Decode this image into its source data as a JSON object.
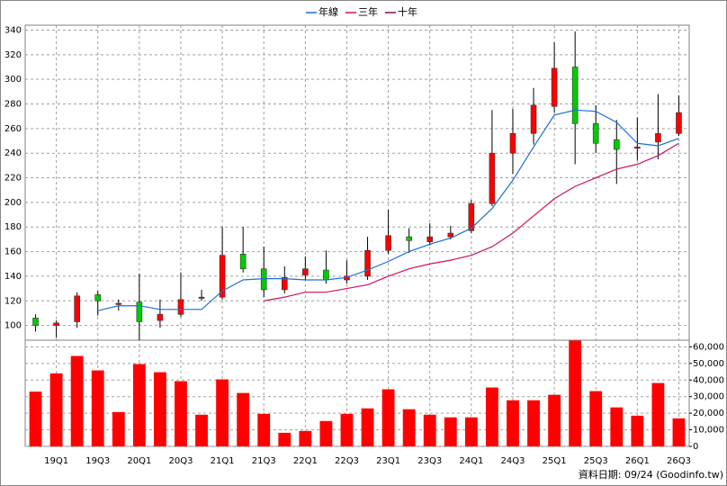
{
  "chart_data": {
    "type": "candlestick",
    "categories": [
      null,
      "19Q1",
      null,
      "19Q3",
      null,
      "20Q1",
      null,
      "20Q3",
      null,
      "21Q1",
      null,
      "21Q3",
      null,
      "22Q1",
      null,
      "22Q3",
      null,
      "23Q1",
      null,
      "23Q3",
      null,
      "24Q1",
      null,
      "24Q3",
      null,
      "25Q1",
      null,
      "25Q3",
      null,
      "26Q1",
      null,
      "26Q3"
    ],
    "open": [
      106,
      100,
      103,
      125,
      117,
      119,
      104,
      109,
      122,
      123,
      158,
      146,
      129,
      141,
      145,
      137,
      140,
      161,
      172,
      168,
      172,
      177,
      199,
      240,
      256,
      278,
      310,
      264,
      251,
      244,
      249,
      256
    ],
    "high": [
      109,
      104,
      127,
      128,
      121,
      142,
      121,
      143,
      129,
      180,
      180,
      164,
      148,
      156,
      161,
      153,
      172,
      194,
      179,
      183,
      181,
      202,
      275,
      276,
      293,
      330,
      339,
      279,
      267,
      269,
      288,
      287
    ],
    "low": [
      95,
      90,
      98,
      108,
      112,
      88,
      98,
      107,
      120,
      121,
      143,
      123,
      126,
      137,
      134,
      134,
      137,
      158,
      159,
      165,
      170,
      175,
      197,
      223,
      247,
      273,
      231,
      240,
      215,
      234,
      235,
      254
    ],
    "close": [
      100,
      102,
      124,
      120,
      118,
      103,
      109,
      121,
      123,
      157,
      146,
      129,
      139,
      146,
      137,
      140,
      161,
      173,
      169,
      172,
      175,
      199,
      240,
      256,
      279,
      309,
      264,
      248,
      243,
      245,
      256,
      273
    ],
    "up_color": "#ff0000",
    "down_color": "#00cc00",
    "series": [
      {
        "name": "年線",
        "color": "#1a6fd6",
        "values": [
          null,
          null,
          null,
          112,
          116,
          116,
          113,
          113,
          113,
          128,
          137,
          138,
          138,
          137,
          137,
          139,
          145,
          152,
          160,
          166,
          171,
          179,
          195,
          218,
          245,
          271,
          275,
          274,
          265,
          248,
          246,
          252
        ]
      },
      {
        "name": "三年",
        "color": "#d0105a",
        "values": [
          null,
          null,
          null,
          null,
          null,
          null,
          null,
          null,
          null,
          null,
          null,
          120,
          123,
          127,
          127,
          130,
          133,
          140,
          146,
          150,
          153,
          157,
          164,
          175,
          189,
          203,
          213,
          220,
          227,
          231,
          238,
          248
        ]
      },
      {
        "name": "十年",
        "color": "#8b0a50",
        "values": [
          null,
          null,
          null,
          null,
          null,
          null,
          null,
          null,
          null,
          null,
          null,
          null,
          null,
          null,
          null,
          null,
          null,
          null,
          null,
          null,
          null,
          null,
          null,
          null,
          null,
          null,
          null,
          null,
          null,
          null,
          null,
          null
        ]
      }
    ],
    "ylim": [
      88,
      344
    ],
    "yticks": [
      100,
      120,
      140,
      160,
      180,
      200,
      220,
      240,
      260,
      280,
      300,
      320,
      340
    ],
    "grid": true,
    "legend": "top",
    "volume": {
      "type": "bar",
      "color": "#ff0000",
      "values": [
        33000,
        44000,
        54500,
        45800,
        20700,
        49600,
        44700,
        39300,
        19100,
        40400,
        32200,
        19600,
        8200,
        9300,
        15300,
        19600,
        22900,
        34400,
        22400,
        19100,
        17500,
        17500,
        35500,
        27800,
        27800,
        31100,
        63800,
        33300,
        23500,
        18500,
        38200,
        16900
      ],
      "ylim": [
        0,
        64000
      ],
      "yticks": [
        0,
        {
          "value": 10000,
          "label": "10,000"
        },
        {
          "value": 20000,
          "label": "20,000"
        },
        {
          "value": 30000,
          "label": "30,000"
        },
        {
          "value": 40000,
          "label": "40,000"
        },
        {
          "value": 50000,
          "label": "50,000"
        },
        {
          "value": 60000,
          "label": "60,000"
        }
      ]
    },
    "source": "資料日期: 09/24 (Goodinfo.tw)"
  }
}
